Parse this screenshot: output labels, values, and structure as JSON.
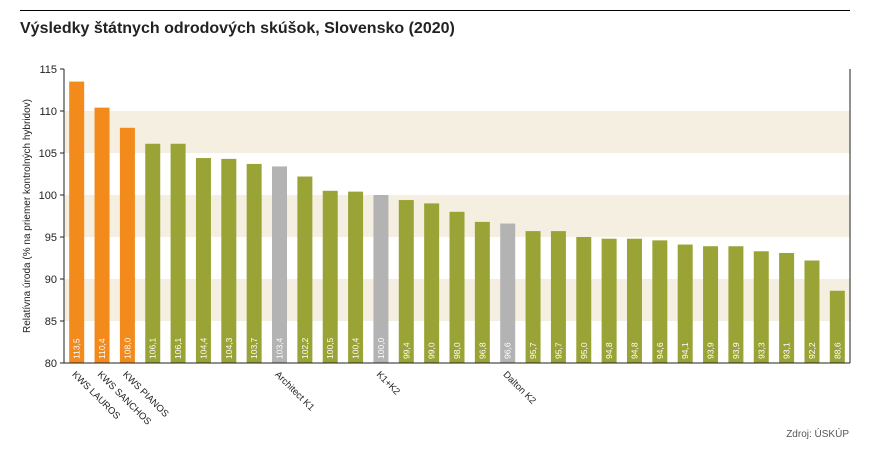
{
  "header": {
    "title": "Výsledky štátnych odrodových skúšok, Slovensko (2020)"
  },
  "footer": {
    "source": "Zdroj: ÚSKÚP"
  },
  "colors": {
    "highlight": "#f28a1c",
    "standard": "#9aa436",
    "control": "#b3b3b3",
    "band": "#f5efe1"
  },
  "chart_data": {
    "type": "bar",
    "title": "Výsledky štátnych odrodových skúšok, Slovensko (2020)",
    "ylabel": "Relatívna úroda (% na priemer kontrolných hybridov)",
    "xlabel": "",
    "ylim": [
      80,
      115
    ],
    "yticks": [
      "80",
      "85",
      "90",
      "95",
      "100",
      "105",
      "110",
      "115"
    ],
    "grid": false,
    "values": [
      113.5,
      110.4,
      108.0,
      106.1,
      106.1,
      104.4,
      104.3,
      103.7,
      103.4,
      102.2,
      100.5,
      100.4,
      100.0,
      99.4,
      99.0,
      98.0,
      96.8,
      96.6,
      95.7,
      95.7,
      95.0,
      94.8,
      94.8,
      94.6,
      94.1,
      93.9,
      93.9,
      93.3,
      93.1,
      92.2,
      88.6
    ],
    "value_labels": [
      "113,5",
      "110,4",
      "108,0",
      "106,1",
      "106,1",
      "104,4",
      "104,3",
      "103,7",
      "103,4",
      "102,2",
      "100,5",
      "100,4",
      "100,0",
      "99,4",
      "99,0",
      "98,0",
      "96,8",
      "96,6",
      "95,7",
      "95,7",
      "95,0",
      "94,8",
      "94,8",
      "94,6",
      "94,1",
      "93,9",
      "93,9",
      "93,3",
      "93,1",
      "92,2",
      "88,6"
    ],
    "bar_kind": [
      "highlight",
      "highlight",
      "highlight",
      "standard",
      "standard",
      "standard",
      "standard",
      "standard",
      "control",
      "standard",
      "standard",
      "standard",
      "control",
      "standard",
      "standard",
      "standard",
      "standard",
      "control",
      "standard",
      "standard",
      "standard",
      "standard",
      "standard",
      "standard",
      "standard",
      "standard",
      "standard",
      "standard",
      "standard",
      "standard",
      "standard"
    ],
    "categories": [
      "KWS LAUROS",
      "KWS SANCHOS",
      "KWS PIANOS",
      "",
      "",
      "",
      "",
      "",
      "Architect K1",
      "",
      "",
      "",
      "K1+K2",
      "",
      "",
      "",
      "",
      "Dalton K2",
      "",
      "",
      "",
      "",
      "",
      "",
      "",
      "",
      "",
      "",
      "",
      "",
      ""
    ]
  }
}
